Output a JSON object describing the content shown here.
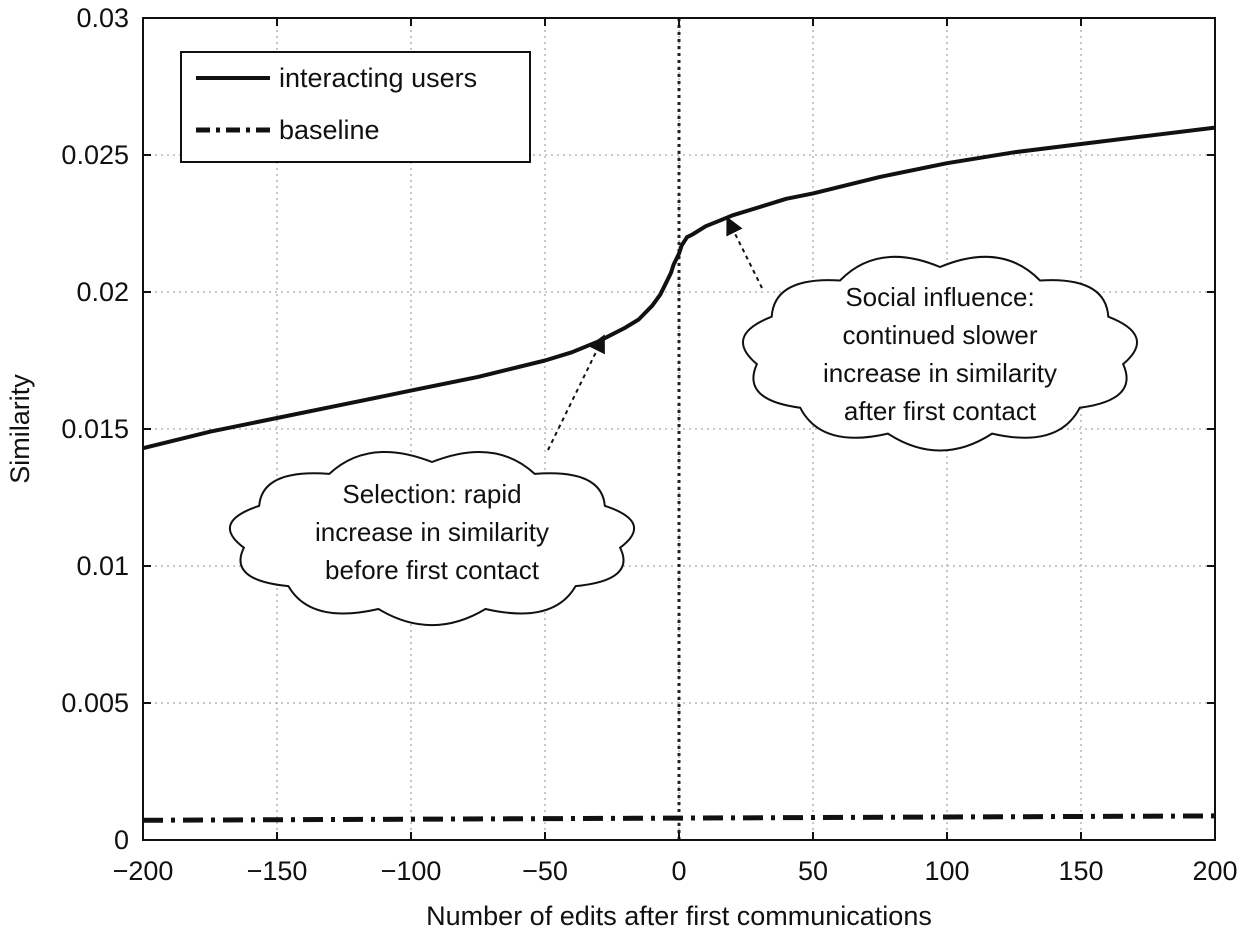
{
  "chart_data": {
    "type": "line",
    "title": "",
    "xlabel": "Number of edits after first communications",
    "ylabel": "Similarity",
    "xlim": [
      -200,
      200
    ],
    "ylim": [
      0,
      0.03
    ],
    "xticks": [
      -200,
      -150,
      -100,
      -50,
      0,
      50,
      100,
      150,
      200
    ],
    "xtick_labels": [
      "−200",
      "−150",
      "−100",
      "−50",
      "0",
      "50",
      "100",
      "150",
      "200"
    ],
    "yticks": [
      0,
      0.005,
      0.01,
      0.015,
      0.02,
      0.025,
      0.03
    ],
    "ytick_labels": [
      "0",
      "0.005",
      "0.01",
      "0.015",
      "0.02",
      "0.025",
      "0.03"
    ],
    "grid": true,
    "legend_position": "top-left",
    "vertical_reference_line_x": 0,
    "series": [
      {
        "name": "interacting users",
        "style": "solid",
        "x": [
          -200,
          -175,
          -150,
          -125,
          -100,
          -75,
          -50,
          -40,
          -30,
          -20,
          -15,
          -10,
          -7,
          -5,
          -3,
          -2,
          -1,
          0,
          1,
          3,
          5,
          10,
          15,
          20,
          30,
          40,
          50,
          75,
          100,
          125,
          150,
          175,
          200
        ],
        "y": [
          0.0143,
          0.0149,
          0.0154,
          0.0159,
          0.0164,
          0.0169,
          0.0175,
          0.0178,
          0.0182,
          0.0187,
          0.019,
          0.0195,
          0.0199,
          0.0203,
          0.0207,
          0.021,
          0.0212,
          0.0214,
          0.0217,
          0.022,
          0.0221,
          0.0224,
          0.0226,
          0.0228,
          0.0231,
          0.0234,
          0.0236,
          0.0242,
          0.0247,
          0.0251,
          0.0254,
          0.0257,
          0.026
        ]
      },
      {
        "name": "baseline",
        "style": "dash-dot",
        "x": [
          -200,
          -100,
          0,
          100,
          200
        ],
        "y": [
          0.00072,
          0.00076,
          0.0008,
          0.00084,
          0.00088
        ]
      }
    ],
    "annotations": [
      {
        "lines": [
          "Selection: rapid",
          "increase in similarity",
          "before first contact"
        ],
        "arrow_to": [
          -28,
          0.0184
        ]
      },
      {
        "lines": [
          "Social influence:",
          "continued slower",
          "increase in similarity",
          "after first contact"
        ],
        "arrow_to": [
          18,
          0.0227
        ]
      }
    ]
  }
}
